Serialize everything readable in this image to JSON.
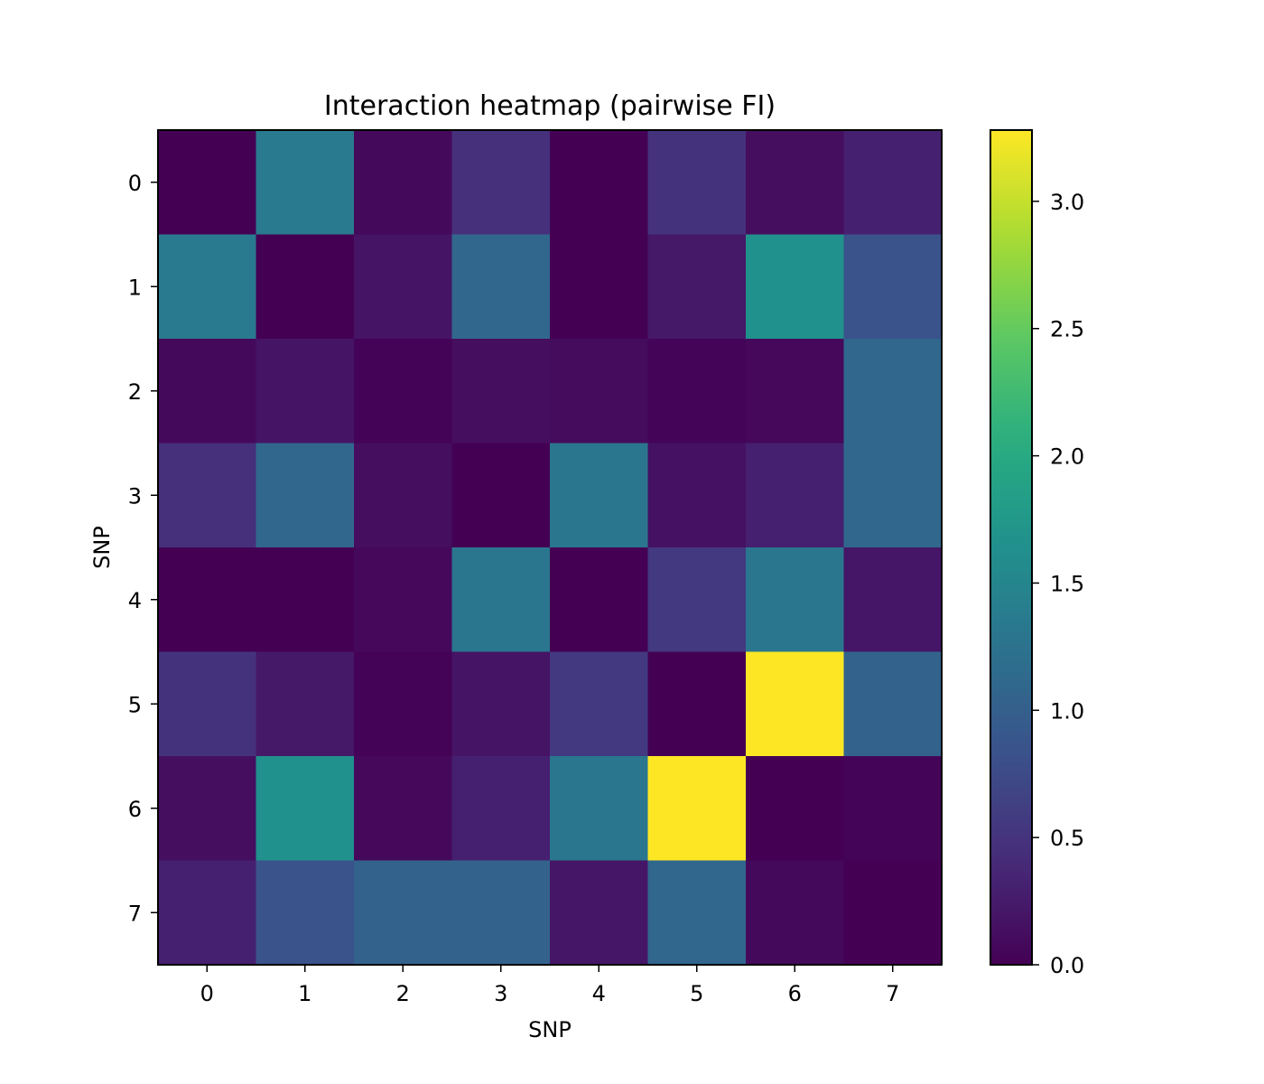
{
  "chart_data": {
    "type": "heatmap",
    "title": "Interaction heatmap (pairwise FI)",
    "xlabel": "SNP",
    "ylabel": "SNP",
    "x_categories": [
      "0",
      "1",
      "2",
      "3",
      "4",
      "5",
      "6",
      "7"
    ],
    "y_categories": [
      "0",
      "1",
      "2",
      "3",
      "4",
      "5",
      "6",
      "7"
    ],
    "values": [
      [
        0.0,
        1.35,
        0.08,
        0.45,
        0.0,
        0.48,
        0.12,
        0.3
      ],
      [
        1.35,
        0.0,
        0.18,
        1.1,
        0.0,
        0.22,
        1.65,
        0.85
      ],
      [
        0.08,
        0.18,
        0.02,
        0.12,
        0.1,
        0.03,
        0.07,
        1.1
      ],
      [
        0.45,
        1.1,
        0.12,
        0.0,
        1.3,
        0.15,
        0.3,
        1.1
      ],
      [
        0.0,
        0.0,
        0.07,
        1.3,
        0.0,
        0.55,
        1.3,
        0.2
      ],
      [
        0.48,
        0.22,
        0.02,
        0.18,
        0.55,
        0.0,
        3.28,
        1.05
      ],
      [
        0.12,
        1.65,
        0.07,
        0.3,
        1.3,
        3.28,
        0.0,
        0.04
      ],
      [
        0.3,
        0.85,
        1.05,
        1.05,
        0.2,
        1.1,
        0.08,
        0.0
      ]
    ],
    "colormap": "viridis",
    "vmin": 0,
    "vmax": 3.28,
    "colorbar_ticks": [
      "0.0",
      "0.5",
      "1.0",
      "1.5",
      "2.0",
      "2.5",
      "3.0"
    ],
    "grid": false,
    "legend": "colorbar-right"
  }
}
